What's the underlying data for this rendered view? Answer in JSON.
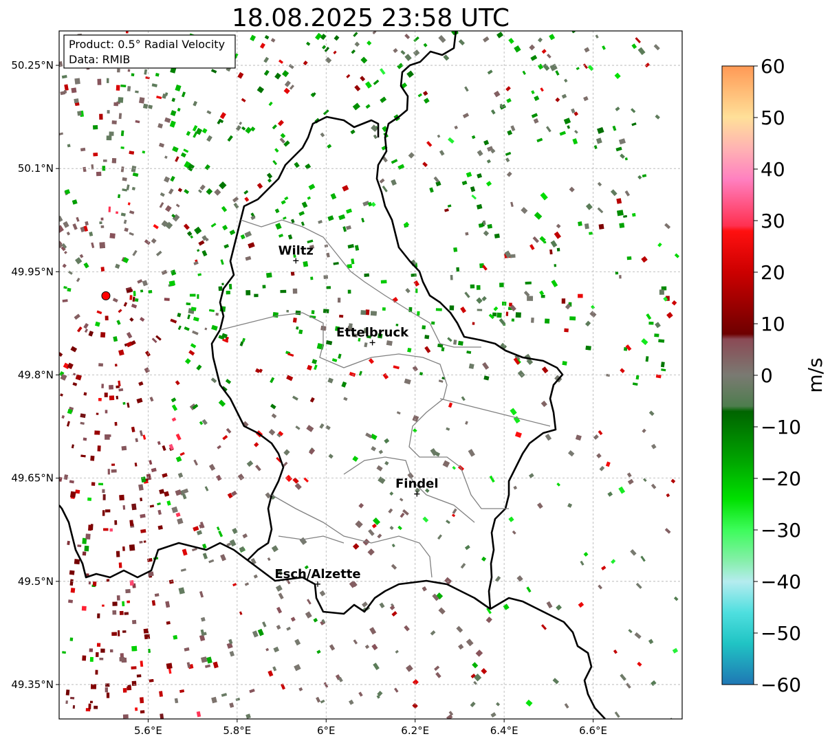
{
  "title": "18.08.2025 23:58 UTC",
  "info_box": {
    "product": "Product: 0.5° Radial Velocity",
    "data": "Data: RMIB"
  },
  "map": {
    "lon_range": [
      5.4,
      6.8
    ],
    "lat_range": [
      49.3,
      50.3
    ],
    "gridlines": true,
    "x_ticks": [
      {
        "value": 5.6,
        "label": "5.6°E"
      },
      {
        "value": 5.8,
        "label": "5.8°E"
      },
      {
        "value": 6.0,
        "label": "6°E"
      },
      {
        "value": 6.2,
        "label": "6.2°E"
      },
      {
        "value": 6.4,
        "label": "6.4°E"
      },
      {
        "value": 6.6,
        "label": "6.6°E"
      }
    ],
    "y_ticks": [
      {
        "value": 50.25,
        "label": "50.25°N"
      },
      {
        "value": 50.1,
        "label": "50.1°N"
      },
      {
        "value": 49.95,
        "label": "49.95°N"
      },
      {
        "value": 49.8,
        "label": "49.8°N"
      },
      {
        "value": 49.65,
        "label": "49.65°N"
      },
      {
        "value": 49.5,
        "label": "49.5°N"
      },
      {
        "value": 49.35,
        "label": "49.35°N"
      }
    ],
    "radar_site": {
      "lon": 5.505,
      "lat": 49.915,
      "color": "#ff0000"
    },
    "cities": [
      {
        "name": "Wiltz",
        "lon": 5.932,
        "lat": 49.966
      },
      {
        "name": "Ettelbruck",
        "lon": 6.104,
        "lat": 49.847
      },
      {
        "name": "Findel",
        "lon": 6.204,
        "lat": 49.627
      },
      {
        "name": "Esch/Alzette",
        "lon": 5.981,
        "lat": 49.496
      }
    ]
  },
  "colorbar": {
    "label": "m/s",
    "min": -60,
    "max": 60,
    "ticks": [
      {
        "value": 60,
        "label": "60"
      },
      {
        "value": 50,
        "label": "50"
      },
      {
        "value": 40,
        "label": "40"
      },
      {
        "value": 30,
        "label": "30"
      },
      {
        "value": 20,
        "label": "20"
      },
      {
        "value": 10,
        "label": "10"
      },
      {
        "value": 0,
        "label": "0"
      },
      {
        "value": -10,
        "label": "−10"
      },
      {
        "value": -20,
        "label": "−20"
      },
      {
        "value": -30,
        "label": "−30"
      },
      {
        "value": -40,
        "label": "−40"
      },
      {
        "value": -50,
        "label": "−50"
      },
      {
        "value": -60,
        "label": "−60"
      }
    ],
    "color_stops": [
      {
        "value": -60,
        "color": "#1f77b4"
      },
      {
        "value": -52,
        "color": "#20c4c4"
      },
      {
        "value": -46,
        "color": "#4fdfdf"
      },
      {
        "value": -40,
        "color": "#b5ecef"
      },
      {
        "value": -36,
        "color": "#86efaa"
      },
      {
        "value": -30,
        "color": "#3dfc5b"
      },
      {
        "value": -24,
        "color": "#00e000"
      },
      {
        "value": -17,
        "color": "#00a800"
      },
      {
        "value": -7,
        "color": "#006400"
      },
      {
        "value": -6,
        "color": "#4e7d4e"
      },
      {
        "value": 0,
        "color": "#7a7a72"
      },
      {
        "value": 7,
        "color": "#8b4a55"
      },
      {
        "value": 8,
        "color": "#6e0000"
      },
      {
        "value": 20,
        "color": "#cc0000"
      },
      {
        "value": 28,
        "color": "#ff1010"
      },
      {
        "value": 29,
        "color": "#ff3050"
      },
      {
        "value": 38,
        "color": "#ff80c0"
      },
      {
        "value": 44,
        "color": "#ffb3b3"
      },
      {
        "value": 50,
        "color": "#ffe099"
      },
      {
        "value": 60,
        "color": "#ff9955"
      }
    ]
  }
}
